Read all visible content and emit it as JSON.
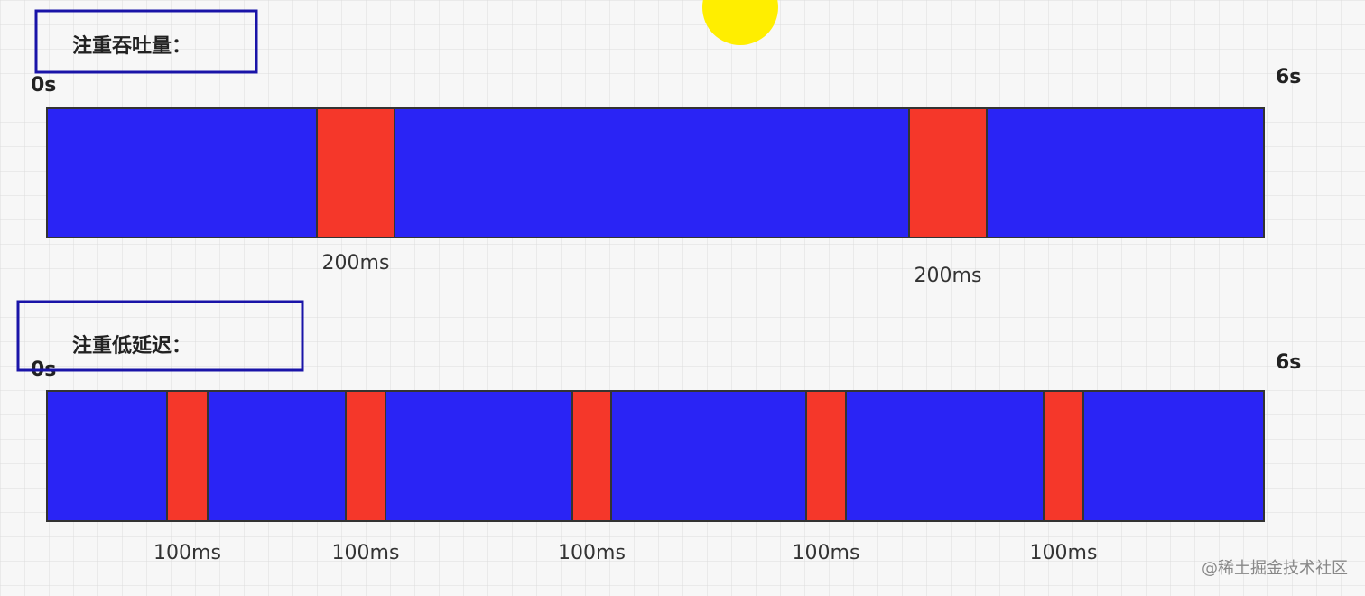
{
  "sections": [
    {
      "title": "注重吞吐量：",
      "start": "0s",
      "end": "6s",
      "pauses": [
        {
          "label": "200ms"
        },
        {
          "label": "200ms"
        }
      ]
    },
    {
      "title": "注重低延迟：",
      "start": "0s",
      "end": "6s",
      "pauses": [
        {
          "label": "100ms"
        },
        {
          "label": "100ms"
        },
        {
          "label": "100ms"
        },
        {
          "label": "100ms"
        },
        {
          "label": "100ms"
        }
      ]
    }
  ],
  "watermark": "@稀土掘金技术社区"
}
